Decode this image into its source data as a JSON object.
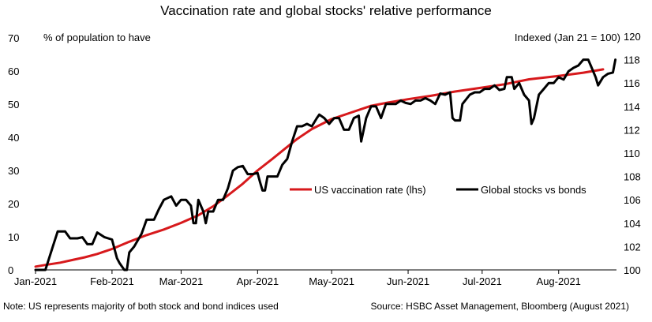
{
  "chart_data": {
    "type": "line",
    "title": "Vaccination rate and global stocks' relative performance",
    "left_axis": {
      "label": "% of population to have",
      "ticks": [
        0,
        10,
        20,
        30,
        40,
        50,
        60,
        70
      ],
      "tick_labels": [
        "0",
        "10",
        "20",
        "30",
        "40",
        "50",
        "60",
        "70"
      ],
      "range": [
        0,
        70
      ]
    },
    "right_axis": {
      "label": "Indexed (Jan 21 = 100)",
      "ticks": [
        100,
        102,
        104,
        106,
        108,
        110,
        112,
        114,
        116,
        118,
        120
      ],
      "tick_labels": [
        "100",
        "102",
        "104",
        "106",
        "108",
        "110",
        "112",
        "114",
        "116",
        "118",
        "120"
      ],
      "range": [
        100,
        120
      ]
    },
    "x_axis": {
      "range_days": [
        0,
        230
      ],
      "ticks": [
        {
          "label": "Jan-2021",
          "day": 0
        },
        {
          "label": "Feb-2021",
          "day": 31
        },
        {
          "label": "Mar-2021",
          "day": 59
        },
        {
          "label": "Apr-2021",
          "day": 90
        },
        {
          "label": "May-2021",
          "day": 120
        },
        {
          "label": "Jun-2021",
          "day": 151
        },
        {
          "label": "Jul-2021",
          "day": 181
        },
        {
          "label": "Aug-2021",
          "day": 212
        }
      ]
    },
    "series": [
      {
        "name": "US vaccination rate (lhs)",
        "axis": "left",
        "color": "#d7191c",
        "points": [
          [
            0,
            1
          ],
          [
            4,
            1.5
          ],
          [
            10,
            2.2
          ],
          [
            15,
            3
          ],
          [
            20,
            3.8
          ],
          [
            25,
            4.8
          ],
          [
            31,
            6.3
          ],
          [
            38,
            8.5
          ],
          [
            45,
            10.5
          ],
          [
            52,
            12.2
          ],
          [
            59,
            14.2
          ],
          [
            66,
            16.5
          ],
          [
            72,
            19.2
          ],
          [
            78,
            22.5
          ],
          [
            84,
            26
          ],
          [
            90,
            30
          ],
          [
            96,
            33.5
          ],
          [
            101,
            36.5
          ],
          [
            106,
            39.5
          ],
          [
            112,
            42.5
          ],
          [
            120,
            45.5
          ],
          [
            128,
            47.5
          ],
          [
            136,
            49.5
          ],
          [
            143,
            50.5
          ],
          [
            151,
            51.5
          ],
          [
            160,
            52.5
          ],
          [
            170,
            53.8
          ],
          [
            181,
            55
          ],
          [
            190,
            56
          ],
          [
            200,
            57.5
          ],
          [
            212,
            58.5
          ],
          [
            222,
            59.5
          ],
          [
            230,
            60.5
          ]
        ]
      },
      {
        "name": "Global stocks vs bonds",
        "axis": "right",
        "color": "#000000",
        "points": [
          [
            0,
            100
          ],
          [
            4,
            100
          ],
          [
            7,
            102
          ],
          [
            9,
            103.3
          ],
          [
            12,
            103.3
          ],
          [
            14,
            102.7
          ],
          [
            17,
            102.7
          ],
          [
            19,
            102.8
          ],
          [
            21,
            102.2
          ],
          [
            23,
            102.2
          ],
          [
            25,
            103.2
          ],
          [
            28,
            102.8
          ],
          [
            31,
            102.6
          ],
          [
            33,
            101
          ],
          [
            34,
            100.6
          ],
          [
            36,
            100
          ],
          [
            37,
            100
          ],
          [
            38,
            101.5
          ],
          [
            40,
            102
          ],
          [
            43,
            103.1
          ],
          [
            45,
            104.3
          ],
          [
            48,
            104.3
          ],
          [
            50,
            105.2
          ],
          [
            52,
            106
          ],
          [
            55,
            106.3
          ],
          [
            57,
            105.5
          ],
          [
            59,
            106
          ],
          [
            61,
            106
          ],
          [
            63,
            105.5
          ],
          [
            64,
            104
          ],
          [
            65,
            104
          ],
          [
            66,
            106
          ],
          [
            68,
            105
          ],
          [
            69,
            104
          ],
          [
            70,
            105
          ],
          [
            72,
            105
          ],
          [
            74,
            106
          ],
          [
            76,
            106
          ],
          [
            78,
            107
          ],
          [
            80,
            108.5
          ],
          [
            82,
            108.8
          ],
          [
            84,
            108.9
          ],
          [
            86,
            108.2
          ],
          [
            88,
            108.2
          ],
          [
            90,
            108.3
          ],
          [
            91,
            107.5
          ],
          [
            92,
            106.8
          ],
          [
            93,
            106.8
          ],
          [
            94,
            108
          ],
          [
            96,
            108
          ],
          [
            98,
            108
          ],
          [
            100,
            109
          ],
          [
            102,
            109.5
          ],
          [
            104,
            111
          ],
          [
            106,
            112.3
          ],
          [
            108,
            112.3
          ],
          [
            110,
            112.5
          ],
          [
            112,
            112.3
          ],
          [
            114,
            113
          ],
          [
            115,
            113.3
          ],
          [
            117,
            113
          ],
          [
            119,
            112.5
          ],
          [
            121,
            113
          ],
          [
            123,
            113
          ],
          [
            125,
            112
          ],
          [
            127,
            112
          ],
          [
            129,
            113
          ],
          [
            131,
            113.2
          ],
          [
            132,
            111
          ],
          [
            134,
            113
          ],
          [
            136,
            114
          ],
          [
            138,
            114
          ],
          [
            140,
            113
          ],
          [
            142,
            114.2
          ],
          [
            144,
            114.2
          ],
          [
            146,
            114.2
          ],
          [
            148,
            114.5
          ],
          [
            150,
            114.3
          ],
          [
            152,
            114.2
          ],
          [
            154,
            114.5
          ],
          [
            156,
            114.5
          ],
          [
            158,
            114.7
          ],
          [
            160,
            114.5
          ],
          [
            162,
            114.2
          ],
          [
            164,
            115.1
          ],
          [
            166,
            115
          ],
          [
            168,
            115.2
          ],
          [
            169,
            113
          ],
          [
            170,
            112.8
          ],
          [
            172,
            112.8
          ],
          [
            173,
            114.2
          ],
          [
            176,
            115
          ],
          [
            178,
            115.2
          ],
          [
            180,
            115.2
          ],
          [
            182,
            115.5
          ],
          [
            184,
            115.5
          ],
          [
            186,
            115.8
          ],
          [
            188,
            115.4
          ],
          [
            190,
            115.5
          ],
          [
            191,
            116.5
          ],
          [
            193,
            116.5
          ],
          [
            194,
            115.5
          ],
          [
            196,
            116
          ],
          [
            198,
            115
          ],
          [
            200,
            114.5
          ],
          [
            201,
            112.5
          ],
          [
            202,
            113
          ],
          [
            204,
            115
          ],
          [
            206,
            115.5
          ],
          [
            208,
            116
          ],
          [
            210,
            116
          ],
          [
            212,
            116.5
          ],
          [
            214,
            116.3
          ],
          [
            216,
            117
          ],
          [
            218,
            117.3
          ],
          [
            220,
            117.5
          ],
          [
            222,
            118
          ],
          [
            224,
            118
          ],
          [
            225,
            117.5
          ],
          [
            227,
            116.5
          ],
          [
            228,
            115.8
          ],
          [
            230,
            116.5
          ],
          [
            232,
            116.8
          ],
          [
            234,
            116.9
          ],
          [
            235,
            118
          ]
        ]
      }
    ],
    "source": "Source: HSBC Asset Management, Bloomberg (August 2021)",
    "note": "Note: US represents majority of both stock and bond indices used"
  }
}
